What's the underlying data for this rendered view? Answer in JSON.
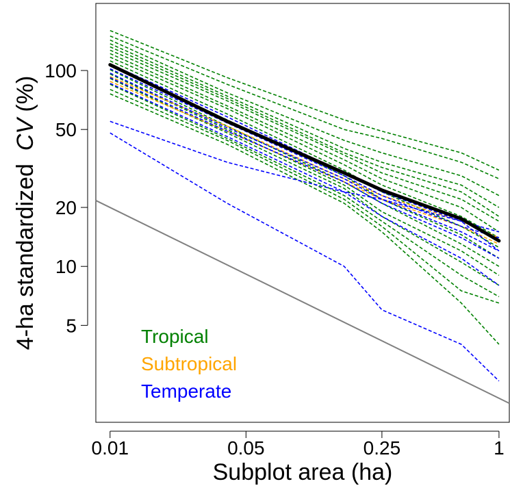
{
  "chart_data": {
    "type": "line",
    "title": "",
    "xlabel": "Subplot area (ha)",
    "ylabel_prefix": "4-ha standardized  ",
    "ylabel_italic": "CV",
    "ylabel_suffix": " (%)",
    "x_scale": "log",
    "y_scale": "log",
    "xlim": [
      0.00845,
      1.13
    ],
    "ylim": [
      1.6,
      220
    ],
    "x_ticks": [
      0.01,
      0.05,
      0.25,
      1
    ],
    "x_tick_labels": [
      "0.01",
      "0.05",
      "0.25",
      "1"
    ],
    "y_ticks": [
      5,
      10,
      20,
      50,
      100
    ],
    "y_tick_labels": [
      "5",
      "10",
      "20",
      "50",
      "100"
    ],
    "grid": false,
    "legend": {
      "placement": "bottom-left",
      "entries": [
        {
          "label": "Tropical",
          "color": "#008000"
        },
        {
          "label": "Subtropical",
          "color": "#FFA500"
        },
        {
          "label": "Temperate",
          "color": "#0000FF"
        }
      ]
    },
    "x": [
      0.01,
      0.04,
      0.16,
      0.25,
      0.64,
      1
    ],
    "series": [
      {
        "region": "Tropical",
        "values": [
          160,
          92,
          56,
          49,
          38,
          31
        ],
        "style": "dashed"
      },
      {
        "region": "Tropical",
        "values": [
          150,
          85,
          50,
          45,
          34,
          28
        ],
        "style": "dashed"
      },
      {
        "region": "Tropical",
        "values": [
          143,
          77,
          44,
          38,
          29,
          23
        ],
        "style": "dashed"
      },
      {
        "region": "Tropical",
        "values": [
          137,
          74,
          40,
          34,
          26,
          20
        ],
        "style": "dashed"
      },
      {
        "region": "Tropical",
        "values": [
          132,
          72,
          38,
          32,
          24,
          18
        ],
        "style": "dashed"
      },
      {
        "region": "Tropical",
        "values": [
          127,
          70,
          37,
          30,
          22,
          17
        ],
        "style": "dashed"
      },
      {
        "region": "Tropical",
        "values": [
          122,
          66,
          35,
          28,
          20,
          15
        ],
        "style": "dashed"
      },
      {
        "region": "Tropical",
        "values": [
          117,
          64,
          33,
          26,
          18,
          14
        ],
        "style": "dashed"
      },
      {
        "region": "Tropical",
        "values": [
          112,
          60,
          31,
          24,
          16,
          12.5
        ],
        "style": "dashed"
      },
      {
        "region": "Tropical",
        "values": [
          107,
          56,
          29,
          22,
          14.5,
          11
        ],
        "style": "dashed"
      },
      {
        "region": "Tropical",
        "values": [
          101,
          52,
          27,
          21,
          13,
          10
        ],
        "style": "dashed"
      },
      {
        "region": "Tropical",
        "values": [
          96,
          50,
          26,
          19,
          12,
          9
        ],
        "style": "dashed"
      },
      {
        "region": "Tropical",
        "values": [
          91,
          48,
          25,
          18,
          10.5,
          8
        ],
        "style": "dashed"
      },
      {
        "region": "Tropical",
        "values": [
          85,
          45,
          23,
          17,
          9,
          7
        ],
        "style": "dashed"
      },
      {
        "region": "Tropical",
        "values": [
          80,
          44,
          22,
          16,
          7.5,
          6.5
        ],
        "style": "dashed"
      },
      {
        "region": "Tropical",
        "values": [
          76,
          42,
          21,
          15,
          6.5,
          4
        ],
        "style": "dashed"
      },
      {
        "region": "Subtropical",
        "values": [
          93,
          52,
          28,
          23,
          17,
          14
        ],
        "style": "dashed"
      },
      {
        "region": "Subtropical",
        "values": [
          88,
          49,
          27,
          22,
          16,
          13
        ],
        "style": "dashed"
      },
      {
        "region": "Temperate",
        "values": [
          108,
          58,
          30,
          24,
          17,
          15
        ],
        "style": "dashed"
      },
      {
        "region": "Temperate",
        "values": [
          102,
          54,
          29,
          23,
          16,
          14
        ],
        "style": "dashed"
      },
      {
        "region": "Temperate",
        "values": [
          97,
          51,
          28,
          22,
          15,
          12
        ],
        "style": "dashed"
      },
      {
        "region": "Temperate",
        "values": [
          92,
          49,
          27,
          21,
          14,
          11
        ],
        "style": "dashed"
      },
      {
        "region": "Temperate",
        "values": [
          86,
          46,
          24,
          18,
          11,
          8
        ],
        "style": "dashed"
      },
      {
        "region": "Temperate",
        "values": [
          55,
          34,
          24,
          22,
          17,
          12
        ],
        "style": "dashed"
      },
      {
        "region": "Temperate",
        "values": [
          48,
          21,
          10,
          6,
          4,
          2.6
        ],
        "style": "dashed"
      },
      {
        "region": "Mean",
        "values": [
          107,
          55,
          30,
          24.5,
          17.5,
          13.5
        ],
        "style": "solid"
      }
    ],
    "reference_line": {
      "x": [
        0.00845,
        1.13
      ],
      "y": [
        21.7,
        2.0
      ],
      "color": "#808080"
    }
  }
}
